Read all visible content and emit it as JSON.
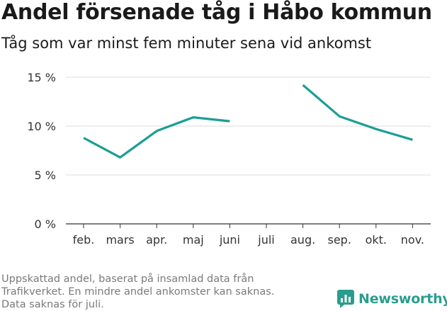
{
  "title": "Andel försenade tåg i Håbo kommun",
  "subtitle": "Tåg som var minst fem minuter sena vid ankomst",
  "footer": {
    "line1": "Uppskattad andel, baserat på insamlad data från",
    "line2": "Trafikverket. En mindre andel ankomster kan saknas.",
    "line3": "Data saknas för juli."
  },
  "brand": {
    "name": "Newsworthy",
    "icon": "newsworthy-logo-icon"
  },
  "colors": {
    "line": "#1a9e95",
    "grid": "#dddddd",
    "axis": "#333333",
    "brand": "#2a9d8f"
  },
  "chart_data": {
    "type": "line",
    "title": "Andel försenade tåg i Håbo kommun",
    "xlabel": "",
    "ylabel": "",
    "categories": [
      "feb.",
      "mars",
      "apr.",
      "maj",
      "juni",
      "juli",
      "aug.",
      "sep.",
      "okt.",
      "nov."
    ],
    "series": [
      {
        "name": "Andel försenade tåg",
        "values": [
          8.8,
          6.8,
          9.5,
          10.9,
          10.5,
          null,
          14.2,
          11.0,
          9.7,
          8.6
        ]
      }
    ],
    "ylim": [
      0,
      15
    ],
    "yticks": [
      0,
      5,
      10,
      15
    ],
    "ytick_labels": [
      "0 %",
      "5 %",
      "10 %",
      "15 %"
    ],
    "grid": true
  }
}
